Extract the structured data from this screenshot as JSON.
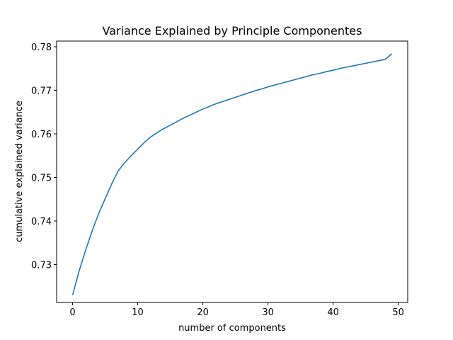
{
  "chart_data": {
    "type": "line",
    "title": "Variance Explained by Principle Componentes",
    "xlabel": "number of components",
    "ylabel": "cumulative explained variance",
    "xlim": [
      -2.45,
      51.45
    ],
    "ylim": [
      0.7213,
      0.7813
    ],
    "xticks": [
      0,
      10,
      20,
      30,
      40,
      50
    ],
    "yticks": [
      0.73,
      0.74,
      0.75,
      0.76,
      0.77,
      0.78
    ],
    "xtick_labels": [
      "0",
      "10",
      "20",
      "30",
      "40",
      "50"
    ],
    "ytick_labels": [
      "0.73",
      "0.74",
      "0.75",
      "0.76",
      "0.77",
      "0.78"
    ],
    "grid": false,
    "line_color": "#1f77b4",
    "x": [
      0,
      1,
      2,
      3,
      4,
      5,
      6,
      7,
      8,
      9,
      10,
      11,
      12,
      13,
      14,
      15,
      16,
      17,
      18,
      19,
      20,
      21,
      22,
      23,
      24,
      25,
      26,
      27,
      28,
      29,
      30,
      31,
      32,
      33,
      34,
      35,
      36,
      37,
      38,
      39,
      40,
      41,
      42,
      43,
      44,
      45,
      46,
      47,
      48,
      49
    ],
    "values": [
      0.723,
      0.7285,
      0.7333,
      0.7377,
      0.7417,
      0.7451,
      0.7485,
      0.7515,
      0.7534,
      0.755,
      0.7565,
      0.758,
      0.7593,
      0.7603,
      0.7612,
      0.762,
      0.7628,
      0.7636,
      0.7643,
      0.765,
      0.7657,
      0.7663,
      0.7669,
      0.7674,
      0.7679,
      0.7684,
      0.7689,
      0.7694,
      0.7699,
      0.7703,
      0.7708,
      0.7712,
      0.7716,
      0.772,
      0.7724,
      0.7728,
      0.7732,
      0.7736,
      0.7739,
      0.7743,
      0.7746,
      0.775,
      0.7753,
      0.7756,
      0.7759,
      0.7762,
      0.7765,
      0.7768,
      0.7771,
      0.7784
    ]
  }
}
